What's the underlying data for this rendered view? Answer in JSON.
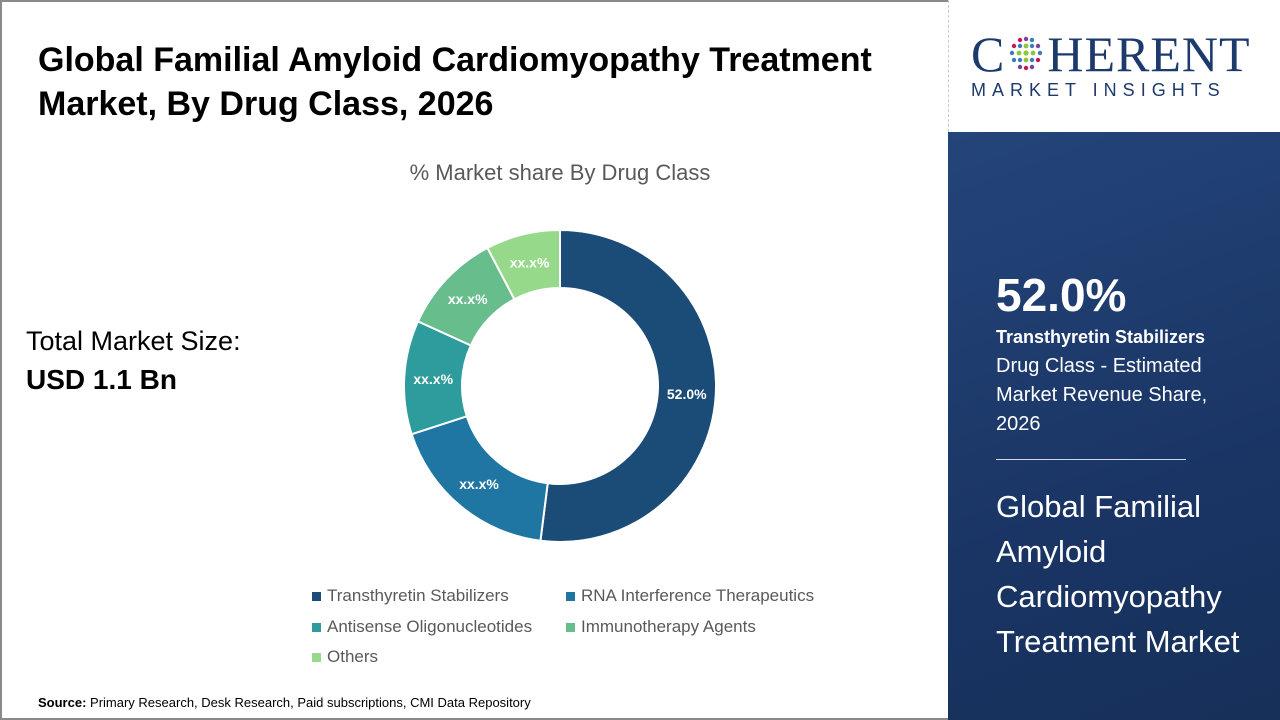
{
  "title": "Global Familial Amyloid Cardiomyopathy Treatment Market, By Drug Class, 2026",
  "total_market": {
    "label": "Total Market Size:",
    "value": "USD 1.1 Bn"
  },
  "source": {
    "label": "Source:",
    "text": "Primary Research, Desk Research, Paid subscriptions, CMI Data Repository"
  },
  "logo": {
    "brand_pre": "C",
    "brand_post": "HERENT",
    "sub": "MARKET INSIGHTS"
  },
  "highlight": {
    "value": "52.0%",
    "segment": "Transthyretin Stabilizers",
    "description": "Drug Class - Estimated Market Revenue Share, 2026",
    "market_name": "Global Familial Amyloid Cardiomyopathy Treatment Market"
  },
  "chart_data": {
    "type": "pie",
    "subtype": "donut",
    "title": "% Market share By Drug Class",
    "legend_position": "bottom",
    "categories": [
      "Transthyretin Stabilizers",
      "RNA Interference Therapeutics",
      "Antisense Oligonucleotides",
      "Immunotherapy Agents",
      "Others"
    ],
    "values": [
      52.0,
      18.0,
      11.8,
      10.5,
      7.7
    ],
    "data_labels": [
      "52.0%",
      "xx.x%",
      "xx.x%",
      "xx.x%",
      "xx.x%"
    ],
    "colors": [
      "#1b4c78",
      "#1f76a3",
      "#2e9c9c",
      "#67bd8c",
      "#97d98a"
    ]
  }
}
